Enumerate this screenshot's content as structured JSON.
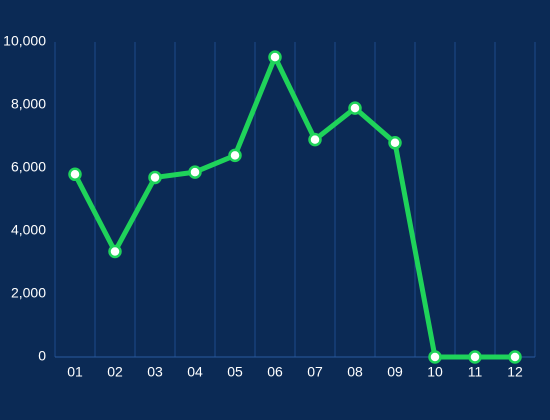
{
  "chart_data": {
    "type": "line",
    "categories": [
      "01",
      "02",
      "03",
      "04",
      "05",
      "06",
      "07",
      "08",
      "09",
      "10",
      "11",
      "12"
    ],
    "values": [
      5800,
      3350,
      5700,
      5870,
      6400,
      9520,
      6900,
      7900,
      6800,
      0,
      0,
      0
    ],
    "color": "#1fd35a",
    "ylim": [
      0,
      10000
    ],
    "yticks": [
      0,
      {
        "value": 2000,
        "label": "2,000"
      },
      {
        "value": 4000,
        "label": "4,000"
      },
      {
        "value": 6000,
        "label": "6,000"
      },
      {
        "value": 8000,
        "label": "8,000"
      },
      {
        "value": 10000,
        "label": "10,000"
      }
    ],
    "grid": "x"
  }
}
